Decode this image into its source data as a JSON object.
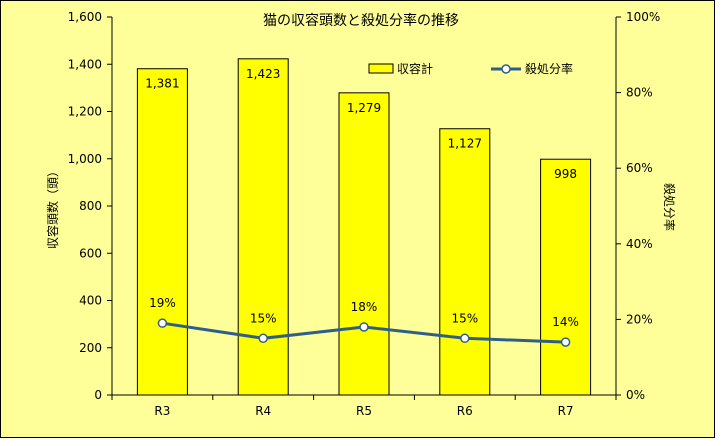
{
  "chart_data": {
    "type": "bar+line",
    "title": "猫の収容頭数と殺処分率の推移",
    "categories": [
      "R3",
      "R4",
      "R5",
      "R6",
      "R7"
    ],
    "series": [
      {
        "name": "収容計",
        "type": "bar",
        "axis": "left",
        "values": [
          1381,
          1423,
          1279,
          1127,
          998
        ],
        "labels": [
          "1,381",
          "1,423",
          "1,279",
          "1,127",
          "998"
        ],
        "color": "#ffff00"
      },
      {
        "name": "殺処分率",
        "type": "line",
        "axis": "right",
        "values": [
          19,
          15,
          18,
          15,
          14
        ],
        "labels": [
          "19%",
          "15%",
          "18%",
          "15%",
          "14%"
        ],
        "color": "#2e5f8a"
      }
    ],
    "ylabel": "収容頭数（頭）",
    "y2label": "殺処分率",
    "ylim": [
      0,
      1600
    ],
    "y2lim": [
      0,
      100
    ],
    "yticks": [
      "0",
      "200",
      "400",
      "600",
      "800",
      "1,000",
      "1,200",
      "1,400",
      "1,600"
    ],
    "y2ticks": [
      "0%",
      "20%",
      "40%",
      "60%",
      "80%",
      "100%"
    ],
    "legend_position": "top-right",
    "grid": false
  }
}
